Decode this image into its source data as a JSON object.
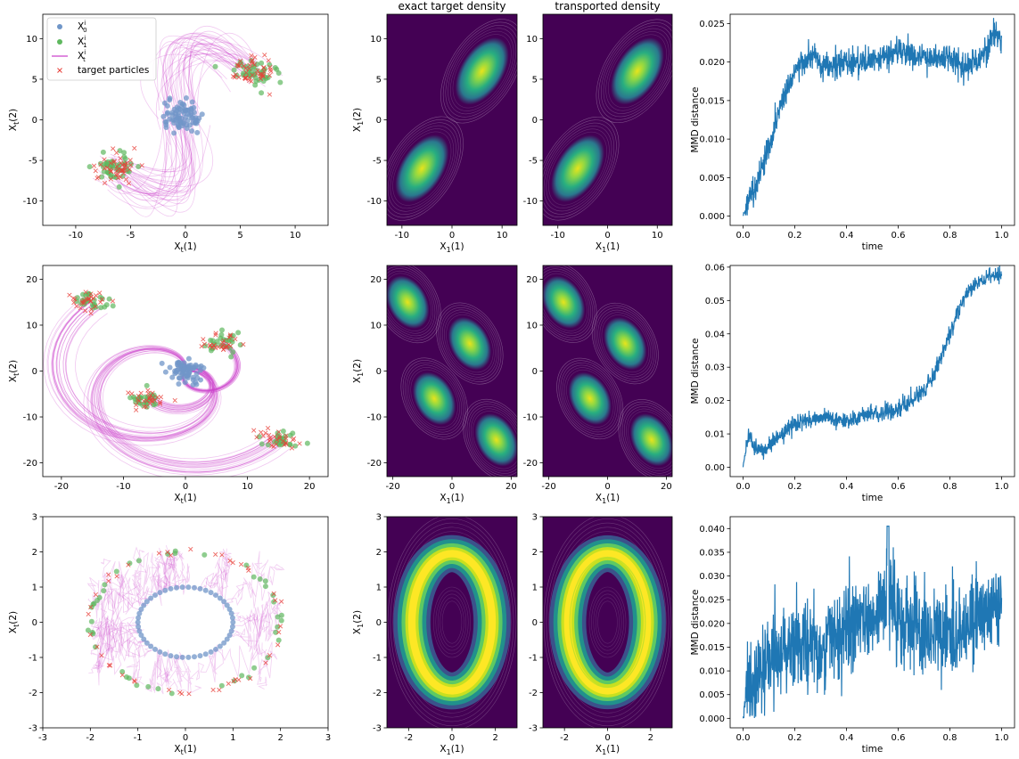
{
  "titles": {
    "exact": "exact target density",
    "transported": "transported density"
  },
  "legend": {
    "x0": "X",
    "x0_sub": "0",
    "x0_sup": "i",
    "x1": "X",
    "x1_sub": "1",
    "x1_sup": "i",
    "xt": "X",
    "xt_sub": "t",
    "xt_sup": "i",
    "target": "target particles"
  },
  "axis_labels": {
    "traj_x": "X",
    "traj_x_sub": "t",
    "traj_x_arg": "(1)",
    "traj_y": "X",
    "traj_y_sub": "t",
    "traj_y_arg": "(2)",
    "dens_x": "X",
    "dens_x_sub": "1",
    "dens_x_arg": "(1)",
    "dens_y": "X",
    "dens_y_sub": "1",
    "dens_y_arg": "(2)",
    "mmd_y": "MMD distance",
    "mmd_x": "time"
  },
  "colors": {
    "x0": "#7096c8",
    "x1": "#5fb85f",
    "xt": "#cc44cc",
    "target": "#e8403a",
    "mmd_line": "#1f77b4",
    "viridis": [
      "#440154",
      "#3b528b",
      "#21918c",
      "#5ec962",
      "#fde725"
    ]
  },
  "rows": [
    {
      "traj": {
        "xlim": [
          -13,
          13
        ],
        "ylim": [
          -13,
          13
        ],
        "xticks": [
          -10,
          -5,
          0,
          5,
          10
        ],
        "yticks": [
          -10,
          -5,
          0,
          5,
          10
        ],
        "show_legend": true
      },
      "density": {
        "xlim": [
          -13,
          13
        ],
        "ylim": [
          -13,
          13
        ],
        "xticks": [
          -10,
          0,
          10
        ],
        "yticks": [
          -10,
          -5,
          0,
          5,
          10
        ]
      },
      "mmd": {
        "ylim": [
          -0.0012,
          0.0262
        ],
        "yticks": [
          "0.000",
          "0.005",
          "0.010",
          "0.015",
          "0.020",
          "0.025"
        ],
        "ytick_vals": [
          0,
          0.005,
          0.01,
          0.015,
          0.02,
          0.025
        ]
      }
    },
    {
      "traj": {
        "xlim": [
          -23,
          23
        ],
        "ylim": [
          -23,
          23
        ],
        "xticks": [
          -20,
          -10,
          0,
          10,
          20
        ],
        "yticks": [
          -20,
          -10,
          0,
          10,
          20
        ],
        "show_legend": false
      },
      "density": {
        "xlim": [
          -22,
          22
        ],
        "ylim": [
          -23,
          23
        ],
        "xticks": [
          -20,
          0,
          20
        ],
        "yticks": [
          -20,
          -10,
          0,
          10,
          20
        ]
      },
      "mmd": {
        "ylim": [
          -0.0028,
          0.0605
        ],
        "yticks": [
          "0.00",
          "0.01",
          "0.02",
          "0.03",
          "0.04",
          "0.05",
          "0.06"
        ],
        "ytick_vals": [
          0,
          0.01,
          0.02,
          0.03,
          0.04,
          0.05,
          0.06
        ]
      }
    },
    {
      "traj": {
        "xlim": [
          -3,
          3
        ],
        "ylim": [
          -3,
          3
        ],
        "xticks": [
          -3,
          -2,
          -1,
          0,
          1,
          2,
          3
        ],
        "yticks": [
          -3,
          -2,
          -1,
          0,
          1,
          2,
          3
        ],
        "show_legend": false
      },
      "density": {
        "xlim": [
          -3,
          3
        ],
        "ylim": [
          -3,
          3
        ],
        "xticks": [
          -2,
          0,
          2
        ],
        "yticks": [
          -3,
          -2,
          -1,
          0,
          1,
          2,
          3
        ]
      },
      "mmd": {
        "ylim": [
          -0.002,
          0.0425
        ],
        "yticks": [
          "0.000",
          "0.005",
          "0.010",
          "0.015",
          "0.020",
          "0.025",
          "0.030",
          "0.035",
          "0.040"
        ],
        "ytick_vals": [
          0,
          0.005,
          0.01,
          0.015,
          0.02,
          0.025,
          0.03,
          0.035,
          0.04
        ]
      }
    }
  ],
  "chart_data": [
    {
      "type": "line",
      "title": "",
      "xlabel": "time",
      "ylabel": "MMD distance",
      "xlim": [
        0,
        1
      ],
      "ylim": [
        0,
        0.025
      ],
      "x": [
        0,
        0.02,
        0.05,
        0.1,
        0.15,
        0.2,
        0.28,
        0.3,
        0.4,
        0.5,
        0.6,
        0.7,
        0.8,
        0.85,
        0.9,
        0.95,
        0.97,
        1.0
      ],
      "series": [
        {
          "values": [
            0.0,
            0.002,
            0.004,
            0.009,
            0.015,
            0.019,
            0.021,
            0.019,
            0.02,
            0.02,
            0.0215,
            0.0205,
            0.0205,
            0.0195,
            0.02,
            0.022,
            0.024,
            0.0228
          ]
        }
      ]
    },
    {
      "type": "line",
      "title": "",
      "xlabel": "time",
      "ylabel": "MMD distance",
      "xlim": [
        0,
        1
      ],
      "ylim": [
        0,
        0.06
      ],
      "x": [
        0,
        0.02,
        0.05,
        0.1,
        0.15,
        0.2,
        0.3,
        0.4,
        0.5,
        0.6,
        0.7,
        0.75,
        0.8,
        0.85,
        0.9,
        0.95,
        1.0
      ],
      "series": [
        {
          "values": [
            0.0,
            0.01,
            0.005,
            0.006,
            0.01,
            0.013,
            0.015,
            0.014,
            0.016,
            0.017,
            0.023,
            0.03,
            0.04,
            0.05,
            0.055,
            0.057,
            0.0575
          ]
        }
      ]
    },
    {
      "type": "line",
      "title": "",
      "xlabel": "time",
      "ylabel": "MMD distance",
      "xlim": [
        0,
        1
      ],
      "ylim": [
        0,
        0.04
      ],
      "x": [
        0,
        0.02,
        0.05,
        0.1,
        0.2,
        0.3,
        0.4,
        0.5,
        0.56,
        0.6,
        0.7,
        0.8,
        0.9,
        1.0
      ],
      "series": [
        {
          "values": [
            0.0,
            0.006,
            0.008,
            0.012,
            0.016,
            0.015,
            0.019,
            0.021,
            0.026,
            0.02,
            0.017,
            0.018,
            0.02,
            0.024
          ]
        }
      ]
    }
  ]
}
